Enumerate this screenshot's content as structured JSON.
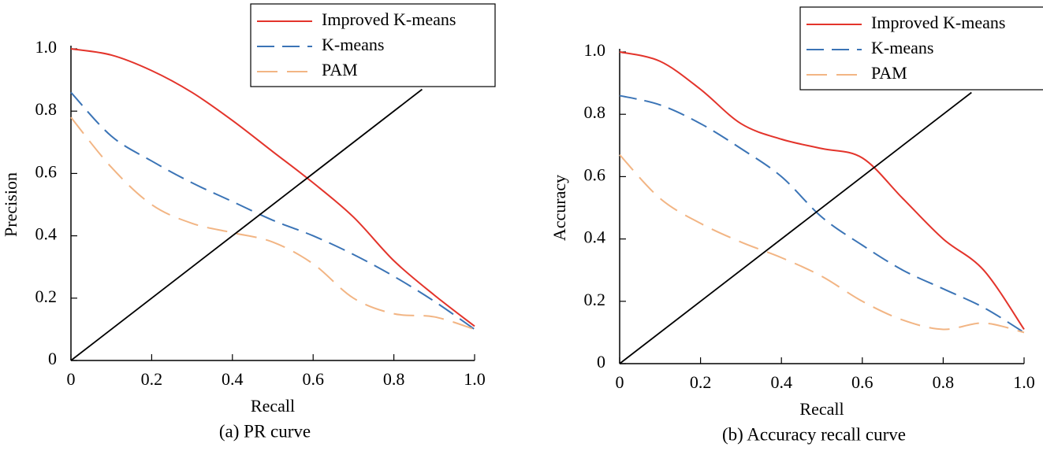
{
  "chart_data": [
    {
      "type": "line",
      "caption": "(a) PR curve",
      "xlabel": "Recall",
      "ylabel": "Precision",
      "x": [
        0,
        0.1,
        0.2,
        0.3,
        0.4,
        0.5,
        0.6,
        0.7,
        0.8,
        0.9,
        1.0
      ],
      "series": [
        {
          "name": "Improved K-means",
          "color": "#e3342b",
          "dash": "none",
          "values": [
            1.0,
            0.98,
            0.93,
            0.86,
            0.77,
            0.67,
            0.57,
            0.46,
            0.32,
            0.21,
            0.11
          ]
        },
        {
          "name": "K-means",
          "color": "#3b74b6",
          "dash": "22 10",
          "values": [
            0.86,
            0.72,
            0.64,
            0.57,
            0.51,
            0.45,
            0.4,
            0.34,
            0.27,
            0.19,
            0.1
          ]
        },
        {
          "name": "PAM",
          "color": "#f2b584",
          "dash": "26 12",
          "values": [
            0.78,
            0.62,
            0.5,
            0.44,
            0.41,
            0.38,
            0.31,
            0.2,
            0.15,
            0.14,
            0.1
          ]
        },
        {
          "color": "#000000",
          "dash": "none",
          "x": [
            0,
            0.87
          ],
          "values": [
            0,
            0.87
          ]
        }
      ],
      "xlim": [
        0,
        1
      ],
      "ylim": [
        0,
        1
      ],
      "xticks": [
        0,
        0.2,
        0.4,
        0.6,
        0.8,
        {
          "value": 1,
          "label": "1.0"
        }
      ],
      "yticks": [
        0,
        0.2,
        0.4,
        0.6,
        0.8,
        {
          "value": 1,
          "label": "1.0"
        }
      ],
      "legend": "upper right"
    },
    {
      "type": "line",
      "caption": "(b) Accuracy recall curve",
      "xlabel": "Recall",
      "ylabel": "Accuracy",
      "x": [
        0,
        0.1,
        0.2,
        0.3,
        0.4,
        0.5,
        0.6,
        0.7,
        0.8,
        0.9,
        1.0
      ],
      "series": [
        {
          "name": "Improved K-means",
          "color": "#e3342b",
          "dash": "none",
          "values": [
            1.0,
            0.97,
            0.88,
            0.77,
            0.72,
            0.69,
            0.66,
            0.53,
            0.4,
            0.3,
            0.11
          ]
        },
        {
          "name": "K-means",
          "color": "#3b74b6",
          "dash": "22 10",
          "values": [
            0.86,
            0.83,
            0.77,
            0.69,
            0.6,
            0.47,
            0.38,
            0.3,
            0.24,
            0.18,
            0.1
          ]
        },
        {
          "name": "PAM",
          "color": "#f2b584",
          "dash": "26 12",
          "values": [
            0.67,
            0.53,
            0.45,
            0.39,
            0.34,
            0.28,
            0.2,
            0.14,
            0.11,
            0.13,
            0.1
          ]
        },
        {
          "color": "#000000",
          "dash": "none",
          "x": [
            0,
            0.87
          ],
          "values": [
            0,
            0.87
          ]
        }
      ],
      "xlim": [
        0,
        1
      ],
      "ylim": [
        0,
        1
      ],
      "xticks": [
        0,
        0.2,
        0.4,
        0.6,
        0.8,
        {
          "value": 1,
          "label": "1.0"
        }
      ],
      "yticks": [
        0,
        0.2,
        0.4,
        0.6,
        0.8,
        {
          "value": 1,
          "label": "1.0"
        }
      ],
      "legend": "upper right"
    }
  ]
}
